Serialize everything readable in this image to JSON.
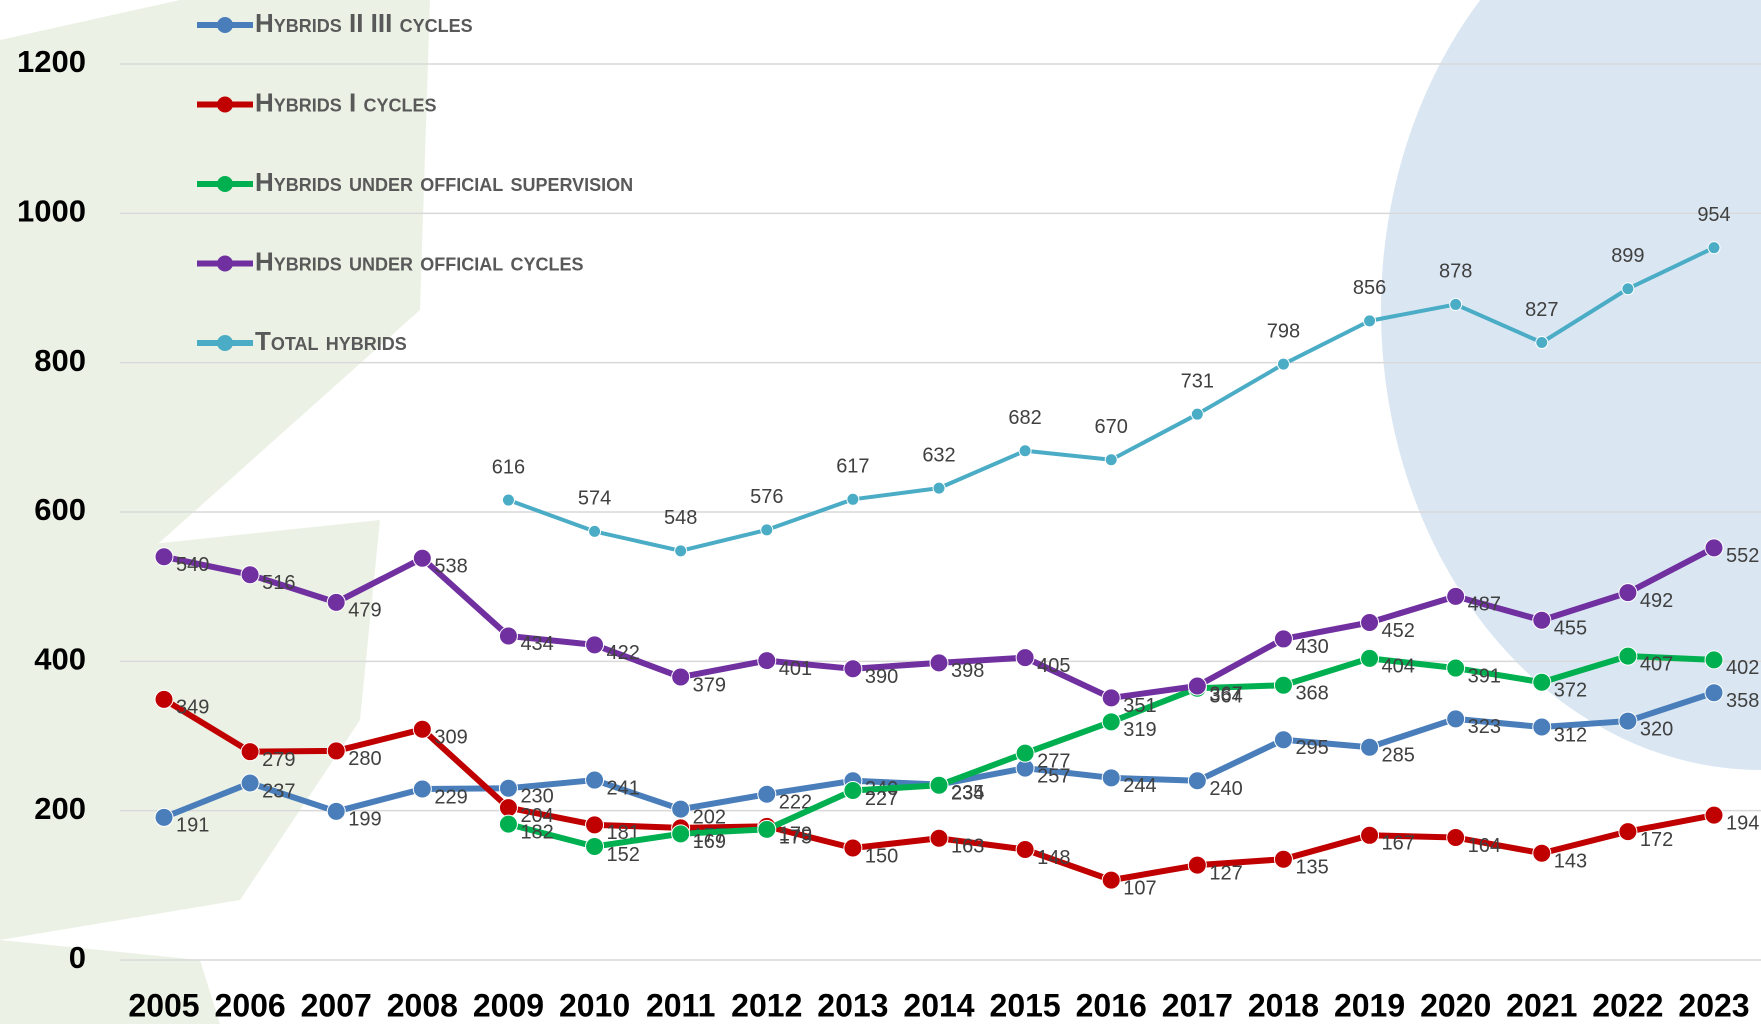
{
  "chart_data": {
    "type": "line",
    "categories": [
      "2005",
      "2006",
      "2007",
      "2008",
      "2009",
      "2010",
      "2011",
      "2012",
      "2013",
      "2014",
      "2015",
      "2016",
      "2017",
      "2018",
      "2019",
      "2020",
      "2021",
      "2022",
      "2023"
    ],
    "series": [
      {
        "name": "Hybrids II III cycles",
        "color": "#4a7ebb",
        "values": [
          191,
          237,
          199,
          229,
          230,
          241,
          202,
          222,
          240,
          235,
          257,
          244,
          240,
          295,
          285,
          323,
          312,
          320,
          358
        ]
      },
      {
        "name": "Hybrids I cycles",
        "color": "#c00000",
        "values": [
          349,
          279,
          280,
          309,
          204,
          181,
          177,
          179,
          150,
          163,
          148,
          107,
          127,
          135,
          167,
          164,
          143,
          172,
          194
        ]
      },
      {
        "name": "Hybrids under official supervision",
        "color": "#00b050",
        "values": [
          null,
          null,
          null,
          null,
          182,
          152,
          169,
          175,
          227,
          234,
          277,
          319,
          364,
          368,
          404,
          391,
          372,
          407,
          402
        ]
      },
      {
        "name": "Hybrids under official cycles",
        "color": "#7030a0",
        "values": [
          540,
          516,
          479,
          538,
          434,
          422,
          379,
          401,
          390,
          398,
          405,
          351,
          367,
          430,
          452,
          487,
          455,
          492,
          552
        ]
      },
      {
        "name": "Total hybrids",
        "color": "#4bacc6",
        "values": [
          null,
          null,
          null,
          null,
          616,
          574,
          548,
          576,
          617,
          632,
          682,
          670,
          731,
          798,
          856,
          878,
          827,
          899,
          954
        ]
      }
    ],
    "ylim": [
      0,
      1200
    ],
    "yticks": [
      0,
      200,
      400,
      600,
      800,
      1000,
      1200
    ],
    "grid": true,
    "legend": "top-left"
  }
}
